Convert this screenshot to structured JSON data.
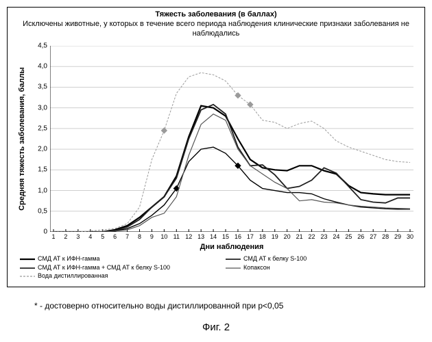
{
  "type": "line",
  "title": "Тяжесть заболевания (в баллах)",
  "subtitle": "Исключены животные, у которых в течение всего периода наблюдения клинические признаки заболевания не наблюдались",
  "x_axis_title": "Дни наблюдения",
  "y_axis_title": "Средняя тяжесть заболевания, баллы",
  "footnote": "* - достоверно относительно воды дистиллированной при p<0,05",
  "figure_label": "Фиг. 2",
  "x": [
    1,
    2,
    3,
    4,
    5,
    6,
    7,
    8,
    9,
    10,
    11,
    12,
    13,
    14,
    15,
    16,
    17,
    18,
    19,
    20,
    21,
    22,
    23,
    24,
    25,
    26,
    27,
    28,
    29,
    30
  ],
  "y_ticks": [
    0,
    0.5,
    1.0,
    1.5,
    2.0,
    2.5,
    3.0,
    3.5,
    4.0,
    4.5
  ],
  "y_tick_labels": [
    "0",
    "0,5",
    "1,0",
    "1,5",
    "2,0",
    "2,5",
    "3,0",
    "3,5",
    "4,0",
    "4,5"
  ],
  "ylim": [
    0,
    4.5
  ],
  "background_color": "#ffffff",
  "grid_color": "#cfcfcf",
  "series": [
    {
      "name": "СМД АТ к ИФН-гамма",
      "color": "#000000",
      "width": 2.2,
      "dash": "",
      "markers": [],
      "y": [
        0,
        0,
        0,
        0,
        0,
        0.05,
        0.15,
        0.35,
        0.6,
        0.85,
        1.35,
        2.3,
        3.05,
        3.0,
        2.8,
        2.25,
        1.75,
        1.55,
        1.5,
        1.48,
        1.6,
        1.6,
        1.48,
        1.4,
        1.12,
        0.95,
        0.92,
        0.9,
        0.9,
        0.9
      ]
    },
    {
      "name": "СМД АТ к белку S-100",
      "color": "#202020",
      "width": 1.8,
      "dash": "",
      "markers": [],
      "y": [
        0,
        0,
        0,
        0,
        0,
        0.03,
        0.12,
        0.3,
        0.6,
        0.85,
        1.3,
        2.25,
        2.95,
        3.08,
        2.85,
        2.05,
        1.6,
        1.62,
        1.38,
        1.05,
        1.1,
        1.25,
        1.55,
        1.42,
        1.1,
        0.78,
        0.72,
        0.7,
        0.82,
        0.82
      ]
    },
    {
      "name": "СМД АТ к ИФН-гамма + СМД АТ к белку S-100",
      "color": "#000000",
      "width": 1.4,
      "dash": "",
      "markers": [
        {
          "x": 11,
          "y": 1.05
        },
        {
          "x": 16,
          "y": 1.6
        }
      ],
      "y": [
        0,
        0,
        0,
        0,
        0,
        0.02,
        0.08,
        0.2,
        0.4,
        0.65,
        1.05,
        1.7,
        2.0,
        2.05,
        1.9,
        1.6,
        1.25,
        1.05,
        1.0,
        0.95,
        0.95,
        0.92,
        0.8,
        0.72,
        0.65,
        0.6,
        0.58,
        0.56,
        0.55,
        0.55
      ]
    },
    {
      "name": "Копаксон",
      "color": "#555555",
      "width": 1.2,
      "dash": "",
      "markers": [],
      "y": [
        0,
        0,
        0,
        0,
        0,
        0.02,
        0.05,
        0.15,
        0.35,
        0.45,
        0.85,
        1.85,
        2.6,
        2.85,
        2.7,
        2.0,
        1.6,
        1.4,
        1.2,
        1.05,
        0.75,
        0.78,
        0.72,
        0.7,
        0.65,
        0.62,
        0.6,
        0.58,
        0.57,
        0.56
      ]
    },
    {
      "name": "Вода дистиллированная",
      "color": "#9a9a9a",
      "width": 1.0,
      "dash": "3,2",
      "markers": [
        {
          "x": 10,
          "y": 2.45
        },
        {
          "x": 16,
          "y": 3.3
        },
        {
          "x": 17,
          "y": 3.08
        }
      ],
      "y": [
        0,
        0,
        0,
        0.02,
        0.05,
        0.08,
        0.2,
        0.6,
        1.75,
        2.45,
        3.35,
        3.75,
        3.85,
        3.8,
        3.65,
        3.3,
        3.08,
        2.7,
        2.65,
        2.5,
        2.62,
        2.68,
        2.5,
        2.2,
        2.05,
        1.95,
        1.85,
        1.75,
        1.7,
        1.68
      ]
    }
  ]
}
